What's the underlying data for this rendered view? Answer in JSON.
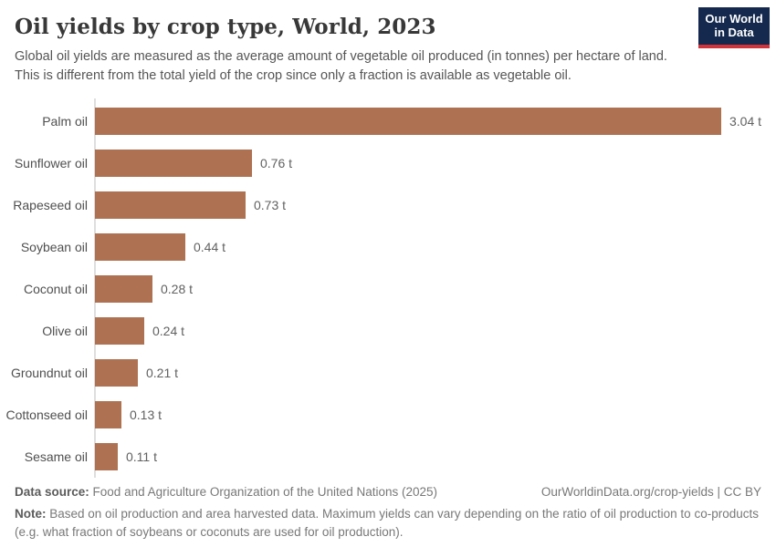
{
  "header": {
    "title": "Oil yields by crop type, World, 2023",
    "subtitle_line1": "Global oil yields are measured as the average amount of vegetable oil produced (in tonnes) per hectare of land.",
    "subtitle_line2": "This is different from the total yield of the crop since only a fraction is available as vegetable oil.",
    "logo": {
      "line1": "Our World",
      "line2": "in Data",
      "bg_color": "#14294d",
      "accent_color": "#d0343a"
    }
  },
  "chart_data": {
    "type": "bar",
    "orientation": "horizontal",
    "title": "Oil yields by crop type, World, 2023",
    "categories": [
      "Palm oil",
      "Sunflower oil",
      "Rapeseed oil",
      "Soybean oil",
      "Coconut oil",
      "Olive oil",
      "Groundnut oil",
      "Cottonseed oil",
      "Sesame oil"
    ],
    "values": [
      3.04,
      0.76,
      0.73,
      0.44,
      0.28,
      0.24,
      0.21,
      0.13,
      0.11
    ],
    "value_labels": [
      "3.04 t",
      "0.76 t",
      "0.73 t",
      "0.44 t",
      "0.28 t",
      "0.24 t",
      "0.21 t",
      "0.13 t",
      "0.11 t"
    ],
    "unit": "t",
    "xlim": [
      0,
      3.04
    ],
    "bar_color": "#ae7252",
    "axis_color": "#dedede",
    "grid": false,
    "legend": "none"
  },
  "footer": {
    "data_source_label": "Data source:",
    "data_source_text": "Food and Agriculture Organization of the United Nations (2025)",
    "link_text": "OurWorldinData.org/crop-yields | CC BY",
    "note_label": "Note:",
    "note_text": "Based on oil production and area harvested data. Maximum yields can vary depending on the ratio of oil production to co-products (e.g. what fraction of soybeans or coconuts are used for oil production)."
  }
}
